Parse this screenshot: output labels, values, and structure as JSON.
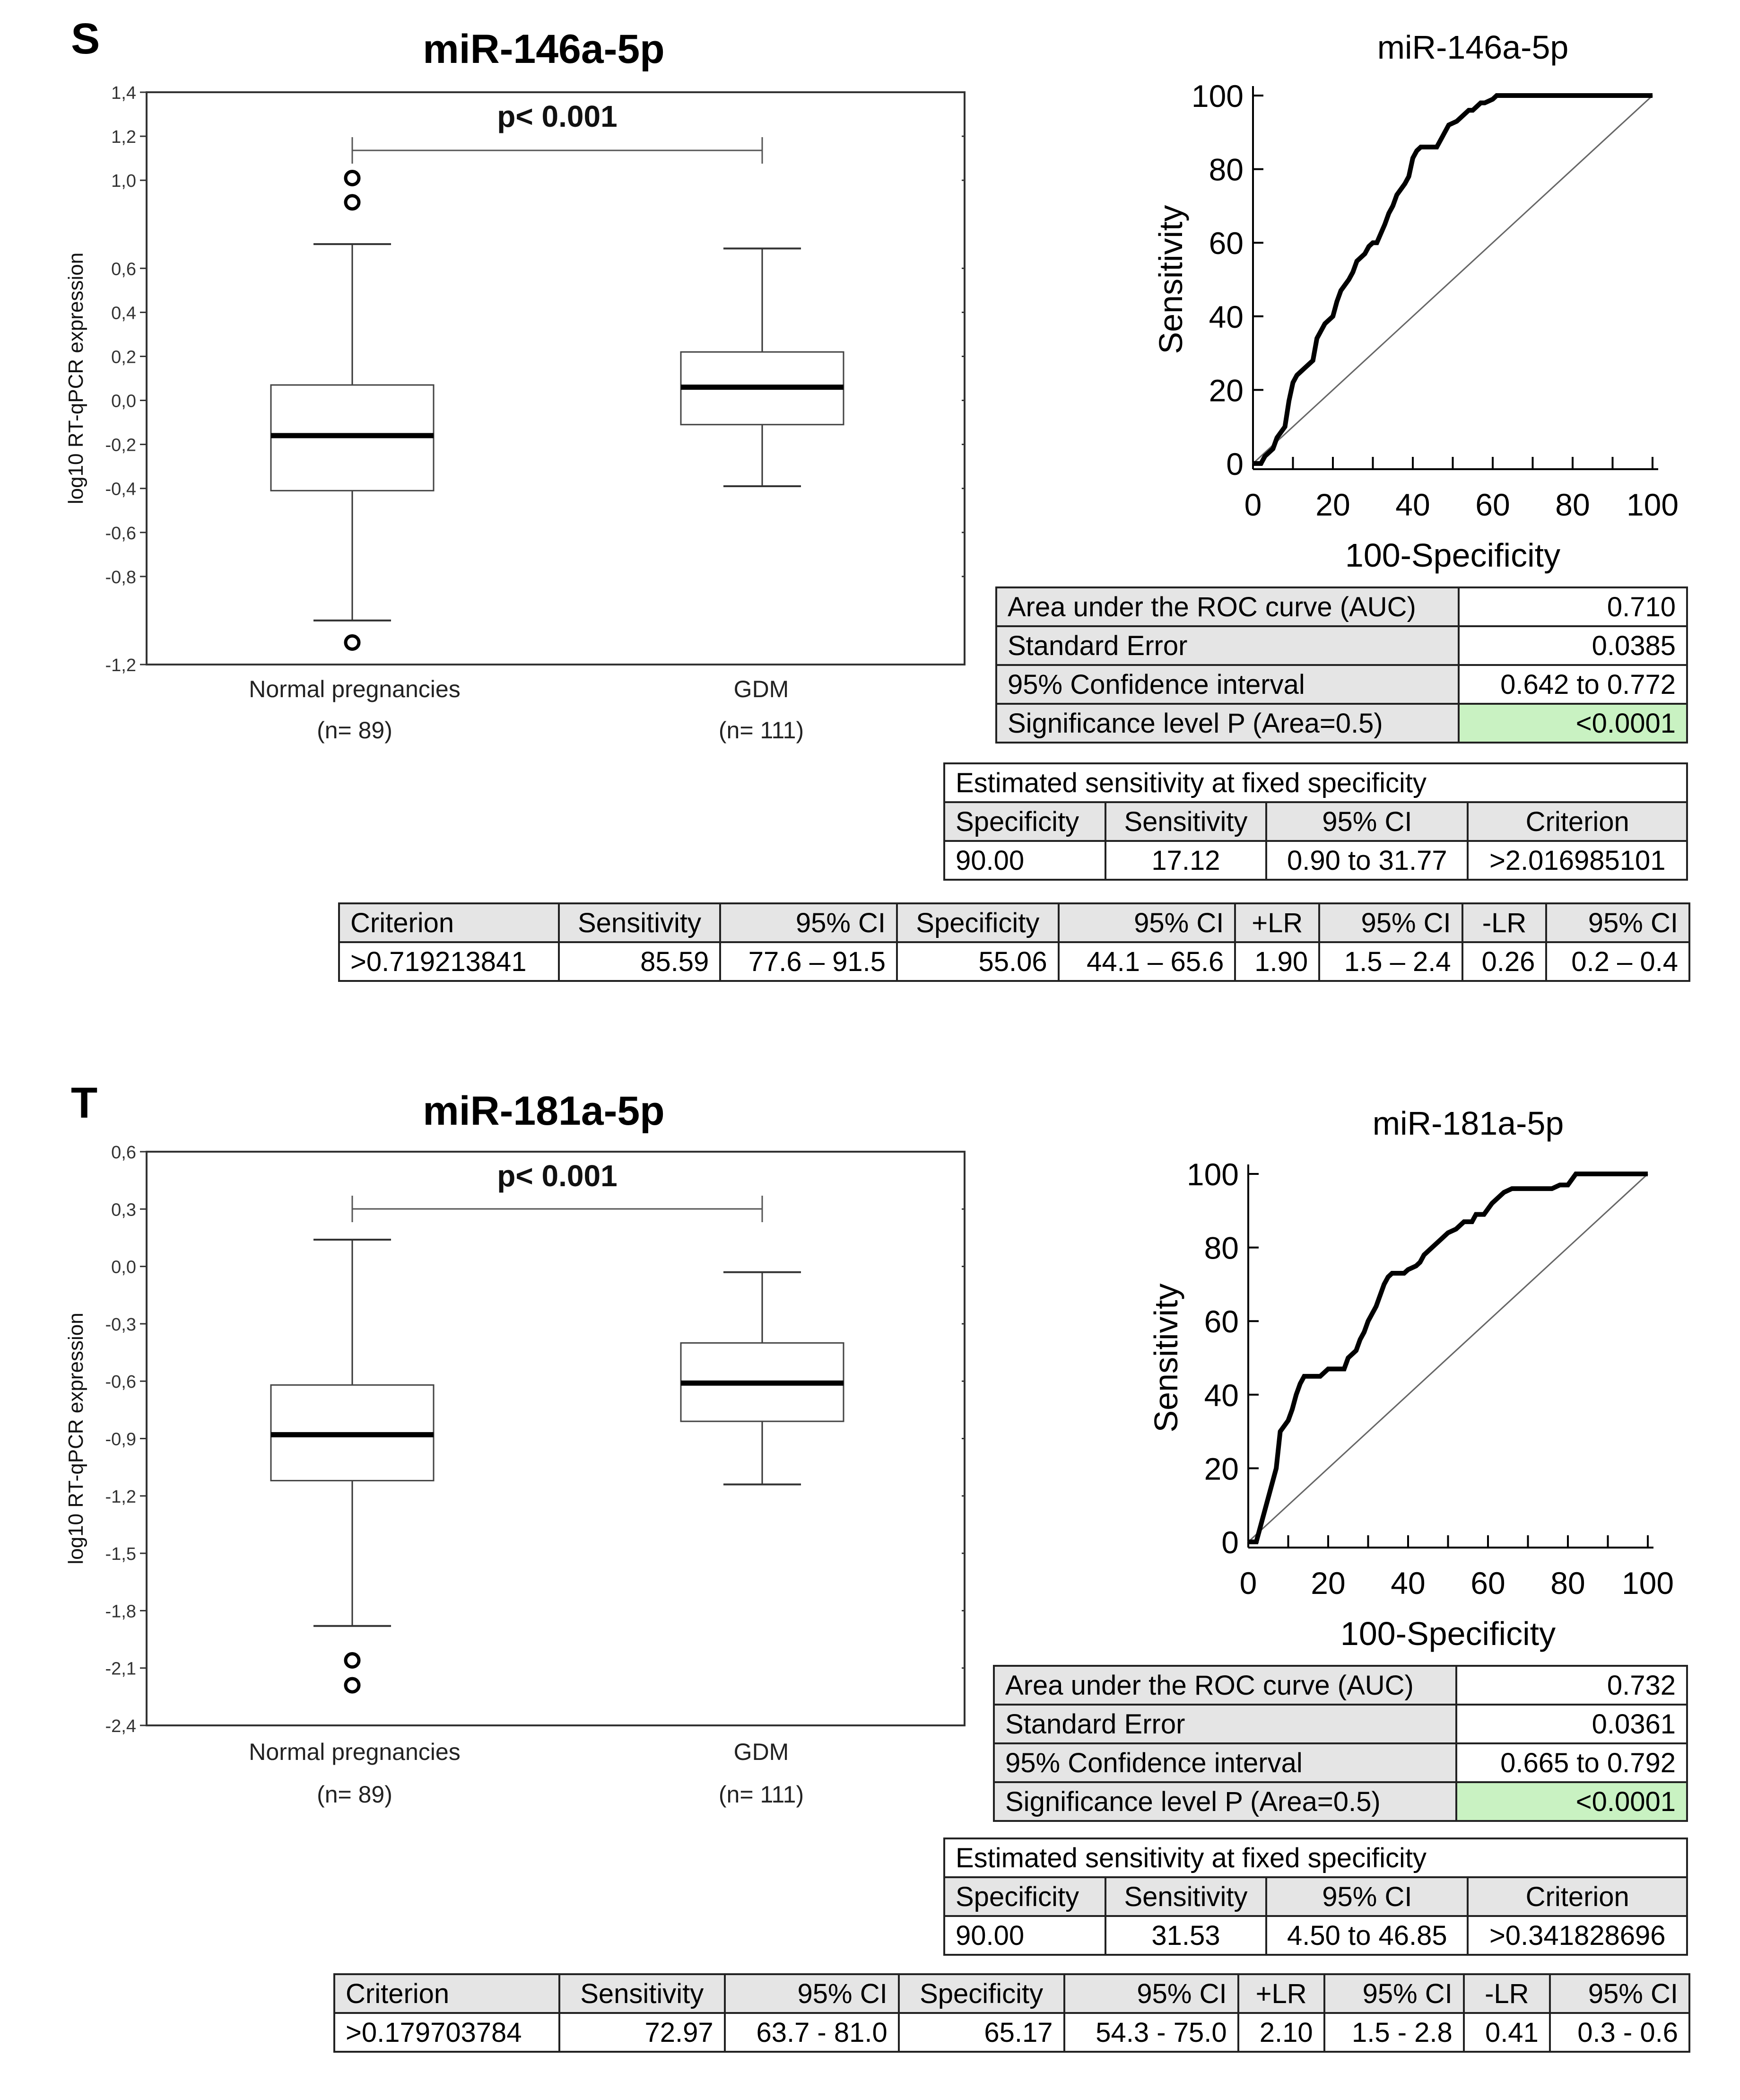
{
  "panels": [
    {
      "letter": "S",
      "box_title": "miR-146a-5p",
      "roc_title": "miR-146a-5p",
      "pvalue": "p< 0.001",
      "ylabel": "log10 RT-qPCR expression",
      "groups": [
        {
          "label": "Normal pregnancies",
          "n": "(n= 89)"
        },
        {
          "label": "GDM",
          "n": "(n= 111)"
        }
      ],
      "auc_table": [
        {
          "label": "Area under the ROC curve (AUC)",
          "value": "0.710"
        },
        {
          "label": "Standard Error",
          "value": "0.0385"
        },
        {
          "label": "95% Confidence interval",
          "value": "0.642 to 0.772"
        },
        {
          "label": "Significance level P (Area=0.5)",
          "value": "<0.0001"
        }
      ],
      "fixed_spec": {
        "caption": "Estimated sensitivity at fixed specificity",
        "headers": [
          "Specificity",
          "Sensitivity",
          "95% CI",
          "Criterion"
        ],
        "row": [
          "90.00",
          "17.12",
          "0.90 to 31.77",
          ">2.016985101"
        ]
      },
      "criterion_table": {
        "headers": [
          "Criterion",
          "Sensitivity",
          "95% CI",
          "Specificity",
          "95% CI",
          "+LR",
          "95% CI",
          "-LR",
          "95% CI"
        ],
        "row": [
          ">0.719213841",
          "85.59",
          "77.6 – 91.5",
          "55.06",
          "44.1 – 65.6",
          "1.90",
          "1.5 – 2.4",
          "0.26",
          "0.2 – 0.4"
        ]
      }
    },
    {
      "letter": "T",
      "box_title": "miR-181a-5p",
      "roc_title": "miR-181a-5p",
      "pvalue": "p< 0.001",
      "ylabel": "log10 RT-qPCR expression",
      "groups": [
        {
          "label": "Normal pregnancies",
          "n": "(n= 89)"
        },
        {
          "label": "GDM",
          "n": "(n= 111)"
        }
      ],
      "auc_table": [
        {
          "label": "Area under the ROC curve (AUC)",
          "value": "0.732"
        },
        {
          "label": "Standard Error",
          "value": "0.0361"
        },
        {
          "label": "95% Confidence interval",
          "value": "0.665 to 0.792"
        },
        {
          "label": "Significance level P (Area=0.5)",
          "value": "<0.0001"
        }
      ],
      "fixed_spec": {
        "caption": "Estimated sensitivity at fixed specificity",
        "headers": [
          "Specificity",
          "Sensitivity",
          "95% CI",
          "Criterion"
        ],
        "row": [
          "90.00",
          "31.53",
          "4.50 to 46.85",
          ">0.341828696"
        ]
      },
      "criterion_table": {
        "headers": [
          "Criterion",
          "Sensitivity",
          "95% CI",
          "Specificity",
          "95% CI",
          "+LR",
          "95% CI",
          "-LR",
          "95% CI"
        ],
        "row": [
          ">0.179703784",
          "72.97",
          "63.7 - 81.0",
          "65.17",
          "54.3 - 75.0",
          "2.10",
          "1.5 - 2.8",
          "0.41",
          "0.3 - 0.6"
        ]
      }
    }
  ],
  "chart_data": [
    {
      "type": "box",
      "title": "miR-146a-5p",
      "ylabel": "log10 RT-qPCR expression",
      "ylim": [
        -1.2,
        1.4
      ],
      "yticks": [
        1.4,
        1.2,
        1.0,
        0.6,
        0.4,
        0.2,
        0.0,
        -0.2,
        -0.4,
        -0.6,
        -0.8,
        -1.2
      ],
      "ytick_labels": [
        "1,4",
        "1,2",
        "1,0",
        "0,6",
        "0,4",
        "0,2",
        "0,0",
        "-0,2",
        "-0,4",
        "-0,6",
        "-0,8",
        "-1,2"
      ],
      "categories": [
        "Normal pregnancies",
        "GDM"
      ],
      "boxes": [
        {
          "whisker_low": -1.0,
          "q1": -0.41,
          "median": -0.16,
          "q3": 0.07,
          "whisker_high": 0.71,
          "outliers": [
            1.01,
            0.9,
            -1.1
          ]
        },
        {
          "whisker_low": -0.39,
          "q1": -0.11,
          "median": 0.06,
          "q3": 0.22,
          "whisker_high": 0.69,
          "outliers": []
        }
      ],
      "annotation": "p< 0.001"
    },
    {
      "type": "line",
      "title": "miR-146a-5p",
      "xlabel": "100-Specificity",
      "ylabel": "Sensitivity",
      "xlim": [
        0,
        100
      ],
      "ylim": [
        0,
        100
      ],
      "xticks": [
        0,
        20,
        40,
        60,
        80,
        100
      ],
      "yticks": [
        0,
        20,
        40,
        60,
        80,
        100
      ],
      "series": [
        {
          "name": "ROC",
          "x": [
            0,
            2,
            3,
            5,
            6,
            8,
            9,
            10,
            11,
            13,
            15,
            16,
            17,
            18,
            20,
            21,
            22,
            24,
            25,
            26,
            28,
            29,
            30,
            31,
            33,
            34,
            35,
            36,
            38,
            39,
            40,
            41,
            42,
            43,
            44,
            46,
            47,
            48,
            49,
            51,
            52,
            54,
            55,
            56,
            57,
            58,
            60,
            61,
            62,
            63,
            65,
            66,
            67,
            69,
            70,
            72,
            74,
            76,
            78,
            80,
            82,
            84,
            100
          ],
          "y": [
            0,
            0,
            2,
            4,
            7,
            10,
            17,
            22,
            24,
            26,
            28,
            34,
            36,
            38,
            40,
            44,
            47,
            50,
            52,
            55,
            57,
            59,
            60,
            60,
            65,
            68,
            70,
            73,
            76,
            78,
            83,
            85,
            86,
            86,
            86,
            86,
            88,
            90,
            92,
            93,
            94,
            96,
            96,
            97,
            98,
            98,
            99,
            100,
            100,
            100,
            100,
            100,
            100,
            100,
            100,
            100,
            100,
            100,
            100,
            100,
            100,
            100,
            100
          ]
        },
        {
          "name": "reference",
          "x": [
            0,
            100
          ],
          "y": [
            0,
            100
          ]
        }
      ]
    },
    {
      "type": "box",
      "title": "miR-181a-5p",
      "ylabel": "log10 RT-qPCR expression",
      "ylim": [
        -2.4,
        0.6
      ],
      "yticks": [
        0.6,
        0.3,
        0.0,
        -0.3,
        -0.6,
        -0.9,
        -1.2,
        -1.5,
        -1.8,
        -2.1,
        -2.4
      ],
      "ytick_labels": [
        "0,6",
        "0,3",
        "0,0",
        "-0,3",
        "-0,6",
        "-0,9",
        "-1,2",
        "-1,5",
        "-1,8",
        "-2,1",
        "-2,4"
      ],
      "categories": [
        "Normal pregnancies",
        "GDM"
      ],
      "boxes": [
        {
          "whisker_low": -1.88,
          "q1": -1.12,
          "median": -0.88,
          "q3": -0.62,
          "whisker_high": 0.14,
          "outliers": [
            -2.06,
            -2.19
          ]
        },
        {
          "whisker_low": -1.14,
          "q1": -0.81,
          "median": -0.61,
          "q3": -0.4,
          "whisker_high": -0.03,
          "outliers": []
        }
      ],
      "annotation": "p< 0.001"
    },
    {
      "type": "line",
      "title": "miR-181a-5p",
      "xlabel": "100-Specificity",
      "ylabel": "Sensitivity",
      "xlim": [
        0,
        100
      ],
      "ylim": [
        0,
        100
      ],
      "xticks": [
        0,
        20,
        40,
        60,
        80,
        100
      ],
      "yticks": [
        0,
        20,
        40,
        60,
        80,
        100
      ],
      "series": [
        {
          "name": "ROC",
          "x": [
            0,
            2,
            3,
            4,
            5,
            6,
            7,
            8,
            10,
            11,
            12,
            13,
            14,
            15,
            16,
            18,
            20,
            22,
            24,
            25,
            27,
            28,
            29,
            30,
            32,
            33,
            34,
            35,
            36,
            37,
            39,
            40,
            42,
            43,
            44,
            46,
            48,
            50,
            52,
            54,
            56,
            57,
            59,
            61,
            62,
            64,
            66,
            68,
            70,
            72,
            74,
            76,
            78,
            80,
            82,
            84,
            88,
            92,
            100
          ],
          "y": [
            0,
            0,
            4,
            8,
            12,
            16,
            20,
            30,
            33,
            36,
            40,
            43,
            45,
            45,
            45,
            45,
            47,
            47,
            47,
            50,
            52,
            55,
            57,
            60,
            64,
            67,
            70,
            72,
            73,
            73,
            73,
            74,
            75,
            76,
            78,
            80,
            82,
            84,
            85,
            87,
            87,
            89,
            89,
            92,
            93,
            95,
            96,
            96,
            96,
            96,
            96,
            96,
            97,
            97,
            100,
            100,
            100,
            100,
            100
          ]
        },
        {
          "name": "reference",
          "x": [
            0,
            100
          ],
          "y": [
            0,
            100
          ]
        }
      ]
    }
  ]
}
